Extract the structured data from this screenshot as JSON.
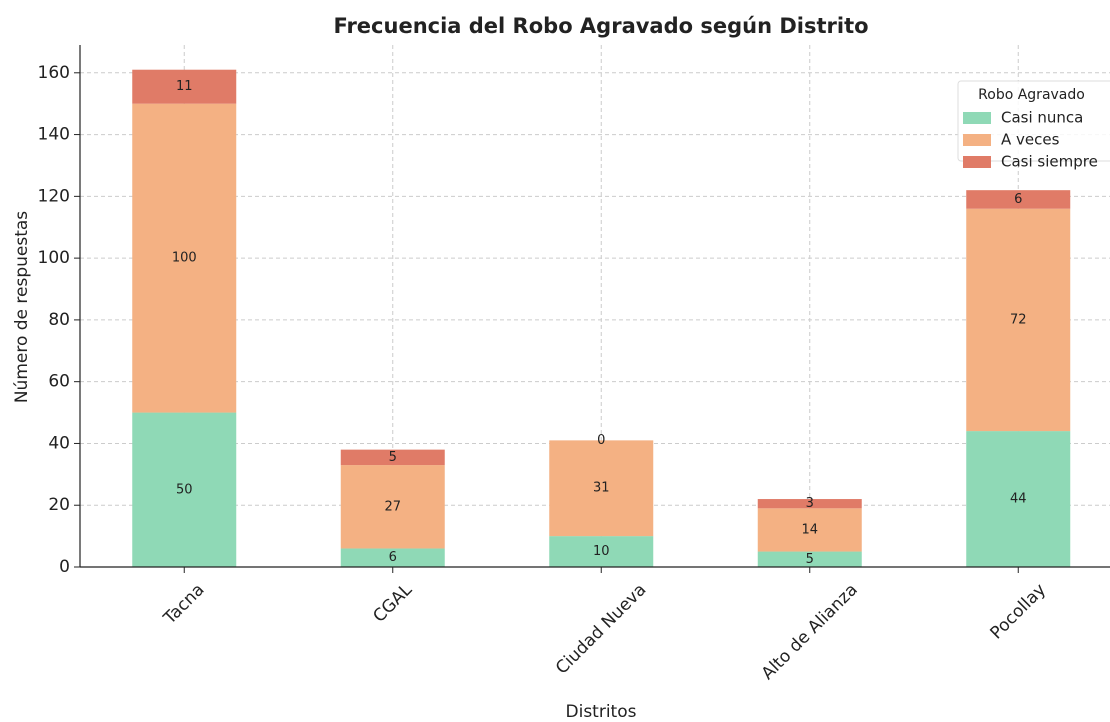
{
  "chart_data": {
    "type": "stacked_bar",
    "title": "Frecuencia del Robo Agravado según Distrito",
    "x_label": "Distritos",
    "y_label": "Número de respuestas",
    "categories": [
      "Tacna",
      "CGAL",
      "Ciudad Nueva",
      "Alto de Alianza",
      "Pocollay"
    ],
    "series": [
      {
        "name": "Casi nunca",
        "color": "#8fd9b6",
        "values": [
          50,
          6,
          10,
          5,
          44
        ]
      },
      {
        "name": "A veces",
        "color": "#f4b183",
        "values": [
          100,
          27,
          31,
          14,
          72
        ]
      },
      {
        "name": "Casi siempre",
        "color": "#e07b67",
        "values": [
          11,
          5,
          0,
          3,
          6
        ]
      }
    ],
    "legend_title": "Robo Agravado",
    "legend_position": "upper right",
    "ylim": [
      0,
      169
    ],
    "yticks": [
      0,
      20,
      40,
      60,
      80,
      100,
      120,
      140,
      160
    ],
    "grid": true
  }
}
